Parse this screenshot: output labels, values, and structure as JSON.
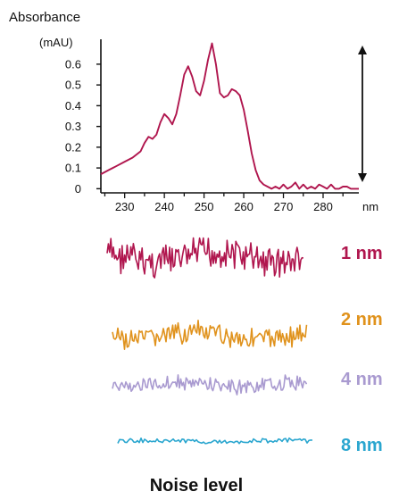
{
  "chart_data": [
    {
      "type": "line",
      "ylabel": "Absorbance",
      "yunit": "(mAU)",
      "xunit": "nm",
      "xlim": [
        224,
        289
      ],
      "ylim": [
        -0.02,
        0.72
      ],
      "xticks": [
        230,
        240,
        250,
        260,
        270,
        280
      ],
      "yticks": [
        0,
        0.1,
        0.2,
        0.3,
        0.4,
        0.5,
        0.6
      ],
      "ytick_labels": [
        "0",
        "0.1",
        "0.2",
        "0.3",
        "0.4",
        "0.5",
        "0.6"
      ],
      "series": [
        {
          "color": "#b0164e",
          "x": [
            224,
            226,
            228,
            230,
            232,
            234,
            235,
            236,
            237,
            238,
            239,
            240,
            241,
            242,
            243,
            244,
            245,
            246,
            247,
            248,
            249,
            250,
            251,
            252,
            253,
            254,
            255,
            256,
            257,
            258,
            259,
            260,
            261,
            262,
            263,
            264,
            265,
            266,
            267,
            268,
            269,
            270,
            271,
            272,
            273,
            274,
            275,
            276,
            277,
            278,
            279,
            280,
            281,
            282,
            283,
            284,
            285,
            286,
            287,
            288,
            289
          ],
          "y": [
            0.07,
            0.09,
            0.11,
            0.13,
            0.15,
            0.18,
            0.22,
            0.25,
            0.24,
            0.26,
            0.32,
            0.36,
            0.34,
            0.31,
            0.36,
            0.45,
            0.55,
            0.59,
            0.54,
            0.47,
            0.45,
            0.52,
            0.62,
            0.7,
            0.6,
            0.46,
            0.44,
            0.45,
            0.48,
            0.47,
            0.45,
            0.38,
            0.28,
            0.17,
            0.09,
            0.04,
            0.02,
            0.01,
            0.0,
            0.01,
            0.0,
            0.02,
            0.0,
            0.01,
            0.03,
            0.0,
            0.02,
            0.0,
            0.01,
            0.0,
            0.02,
            0.01,
            0.0,
            0.02,
            0.0,
            0.0,
            0.01,
            0.01,
            0.0,
            0.0,
            0.0
          ]
        }
      ],
      "annotation": "double-headed vertical arrow spanning the signal height"
    },
    {
      "type": "line",
      "title": "Noise level",
      "series": [
        {
          "name": "1 nm",
          "color": "#b0164e",
          "amplitude": 1.0
        },
        {
          "name": "2 nm",
          "color": "#e0921c",
          "amplitude": 0.55
        },
        {
          "name": "4 nm",
          "color": "#a99ad0",
          "amplitude": 0.35
        },
        {
          "name": "8 nm",
          "color": "#2aa6cf",
          "amplitude": 0.08
        }
      ]
    }
  ]
}
